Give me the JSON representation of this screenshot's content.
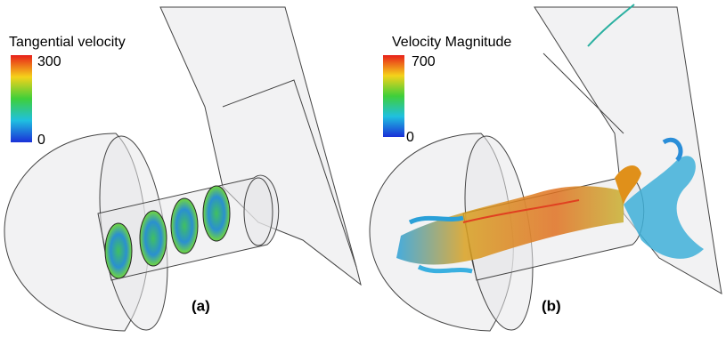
{
  "panels": [
    {
      "legend": {
        "title": "Tangential velocity",
        "max": 300,
        "min": 0
      },
      "label": "(a)"
    },
    {
      "legend": {
        "title": "Velocity Magnitude",
        "max": 700,
        "min": 0
      },
      "label": "(b)"
    }
  ]
}
